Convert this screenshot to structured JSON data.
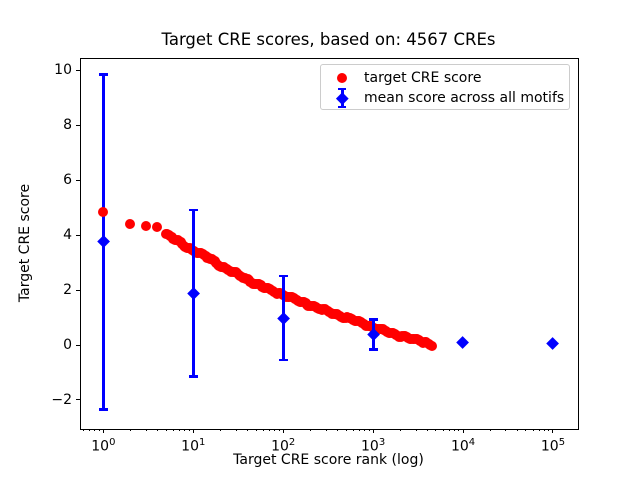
{
  "figure": {
    "background": "#ffffff",
    "text_color": "#000000"
  },
  "chart_data": {
    "type": "scatter",
    "title": "Target CRE scores, based on: 4567 CREs",
    "xlabel": "Target CRE score rank (log)",
    "ylabel": "Target CRE score",
    "x_scale": "log",
    "xlim": [
      0.55,
      185000
    ],
    "ylim": [
      -3.02,
      10.45
    ],
    "x_major_tick_exponents": [
      0,
      1,
      2,
      3,
      4,
      5
    ],
    "y_ticks": [
      -2,
      0,
      2,
      4,
      6,
      8,
      10
    ],
    "grid": false,
    "legend_position": "upper right",
    "series": [
      {
        "name": "target CRE score",
        "marker": "circle",
        "color": "#ff0000",
        "n_points_depicted": 4567,
        "anchor_points_rank_score": [
          [
            1,
            4.82
          ],
          [
            2,
            4.38
          ],
          [
            3,
            4.34
          ],
          [
            4,
            4.3
          ],
          [
            5,
            4.02
          ],
          [
            6,
            3.88
          ],
          [
            7,
            3.75
          ],
          [
            8,
            3.62
          ],
          [
            10,
            3.45
          ],
          [
            13,
            3.27
          ],
          [
            16,
            3.12
          ],
          [
            20,
            2.88
          ],
          [
            25,
            2.72
          ],
          [
            32,
            2.55
          ],
          [
            40,
            2.38
          ],
          [
            50,
            2.22
          ],
          [
            63,
            2.08
          ],
          [
            80,
            1.94
          ],
          [
            100,
            1.82
          ],
          [
            130,
            1.67
          ],
          [
            160,
            1.56
          ],
          [
            200,
            1.45
          ],
          [
            250,
            1.33
          ],
          [
            320,
            1.21
          ],
          [
            400,
            1.1
          ],
          [
            500,
            0.99
          ],
          [
            630,
            0.88
          ],
          [
            800,
            0.76
          ],
          [
            1000,
            0.64
          ],
          [
            1300,
            0.52
          ],
          [
            1600,
            0.43
          ],
          [
            2000,
            0.34
          ],
          [
            2500,
            0.25
          ],
          [
            3200,
            0.16
          ],
          [
            4000,
            0.07
          ],
          [
            4567,
            -0.02
          ]
        ]
      },
      {
        "name": "mean score across all motifs",
        "marker": "diamond",
        "color": "#0000ff",
        "points": [
          {
            "rank": 1,
            "mean": 3.75,
            "err_low": -2.36,
            "err_high": 9.86
          },
          {
            "rank": 10,
            "mean": 1.88,
            "err_low": -1.16,
            "err_high": 4.92
          },
          {
            "rank": 100,
            "mean": 0.98,
            "err_low": -0.56,
            "err_high": 2.52
          },
          {
            "rank": 1000,
            "mean": 0.38,
            "err_low": -0.17,
            "err_high": 0.93
          },
          {
            "rank": 10000,
            "mean": 0.1,
            "err_low": 0.1,
            "err_high": 0.1
          },
          {
            "rank": 100000,
            "mean": 0.05,
            "err_low": 0.05,
            "err_high": 0.05
          }
        ]
      }
    ]
  }
}
